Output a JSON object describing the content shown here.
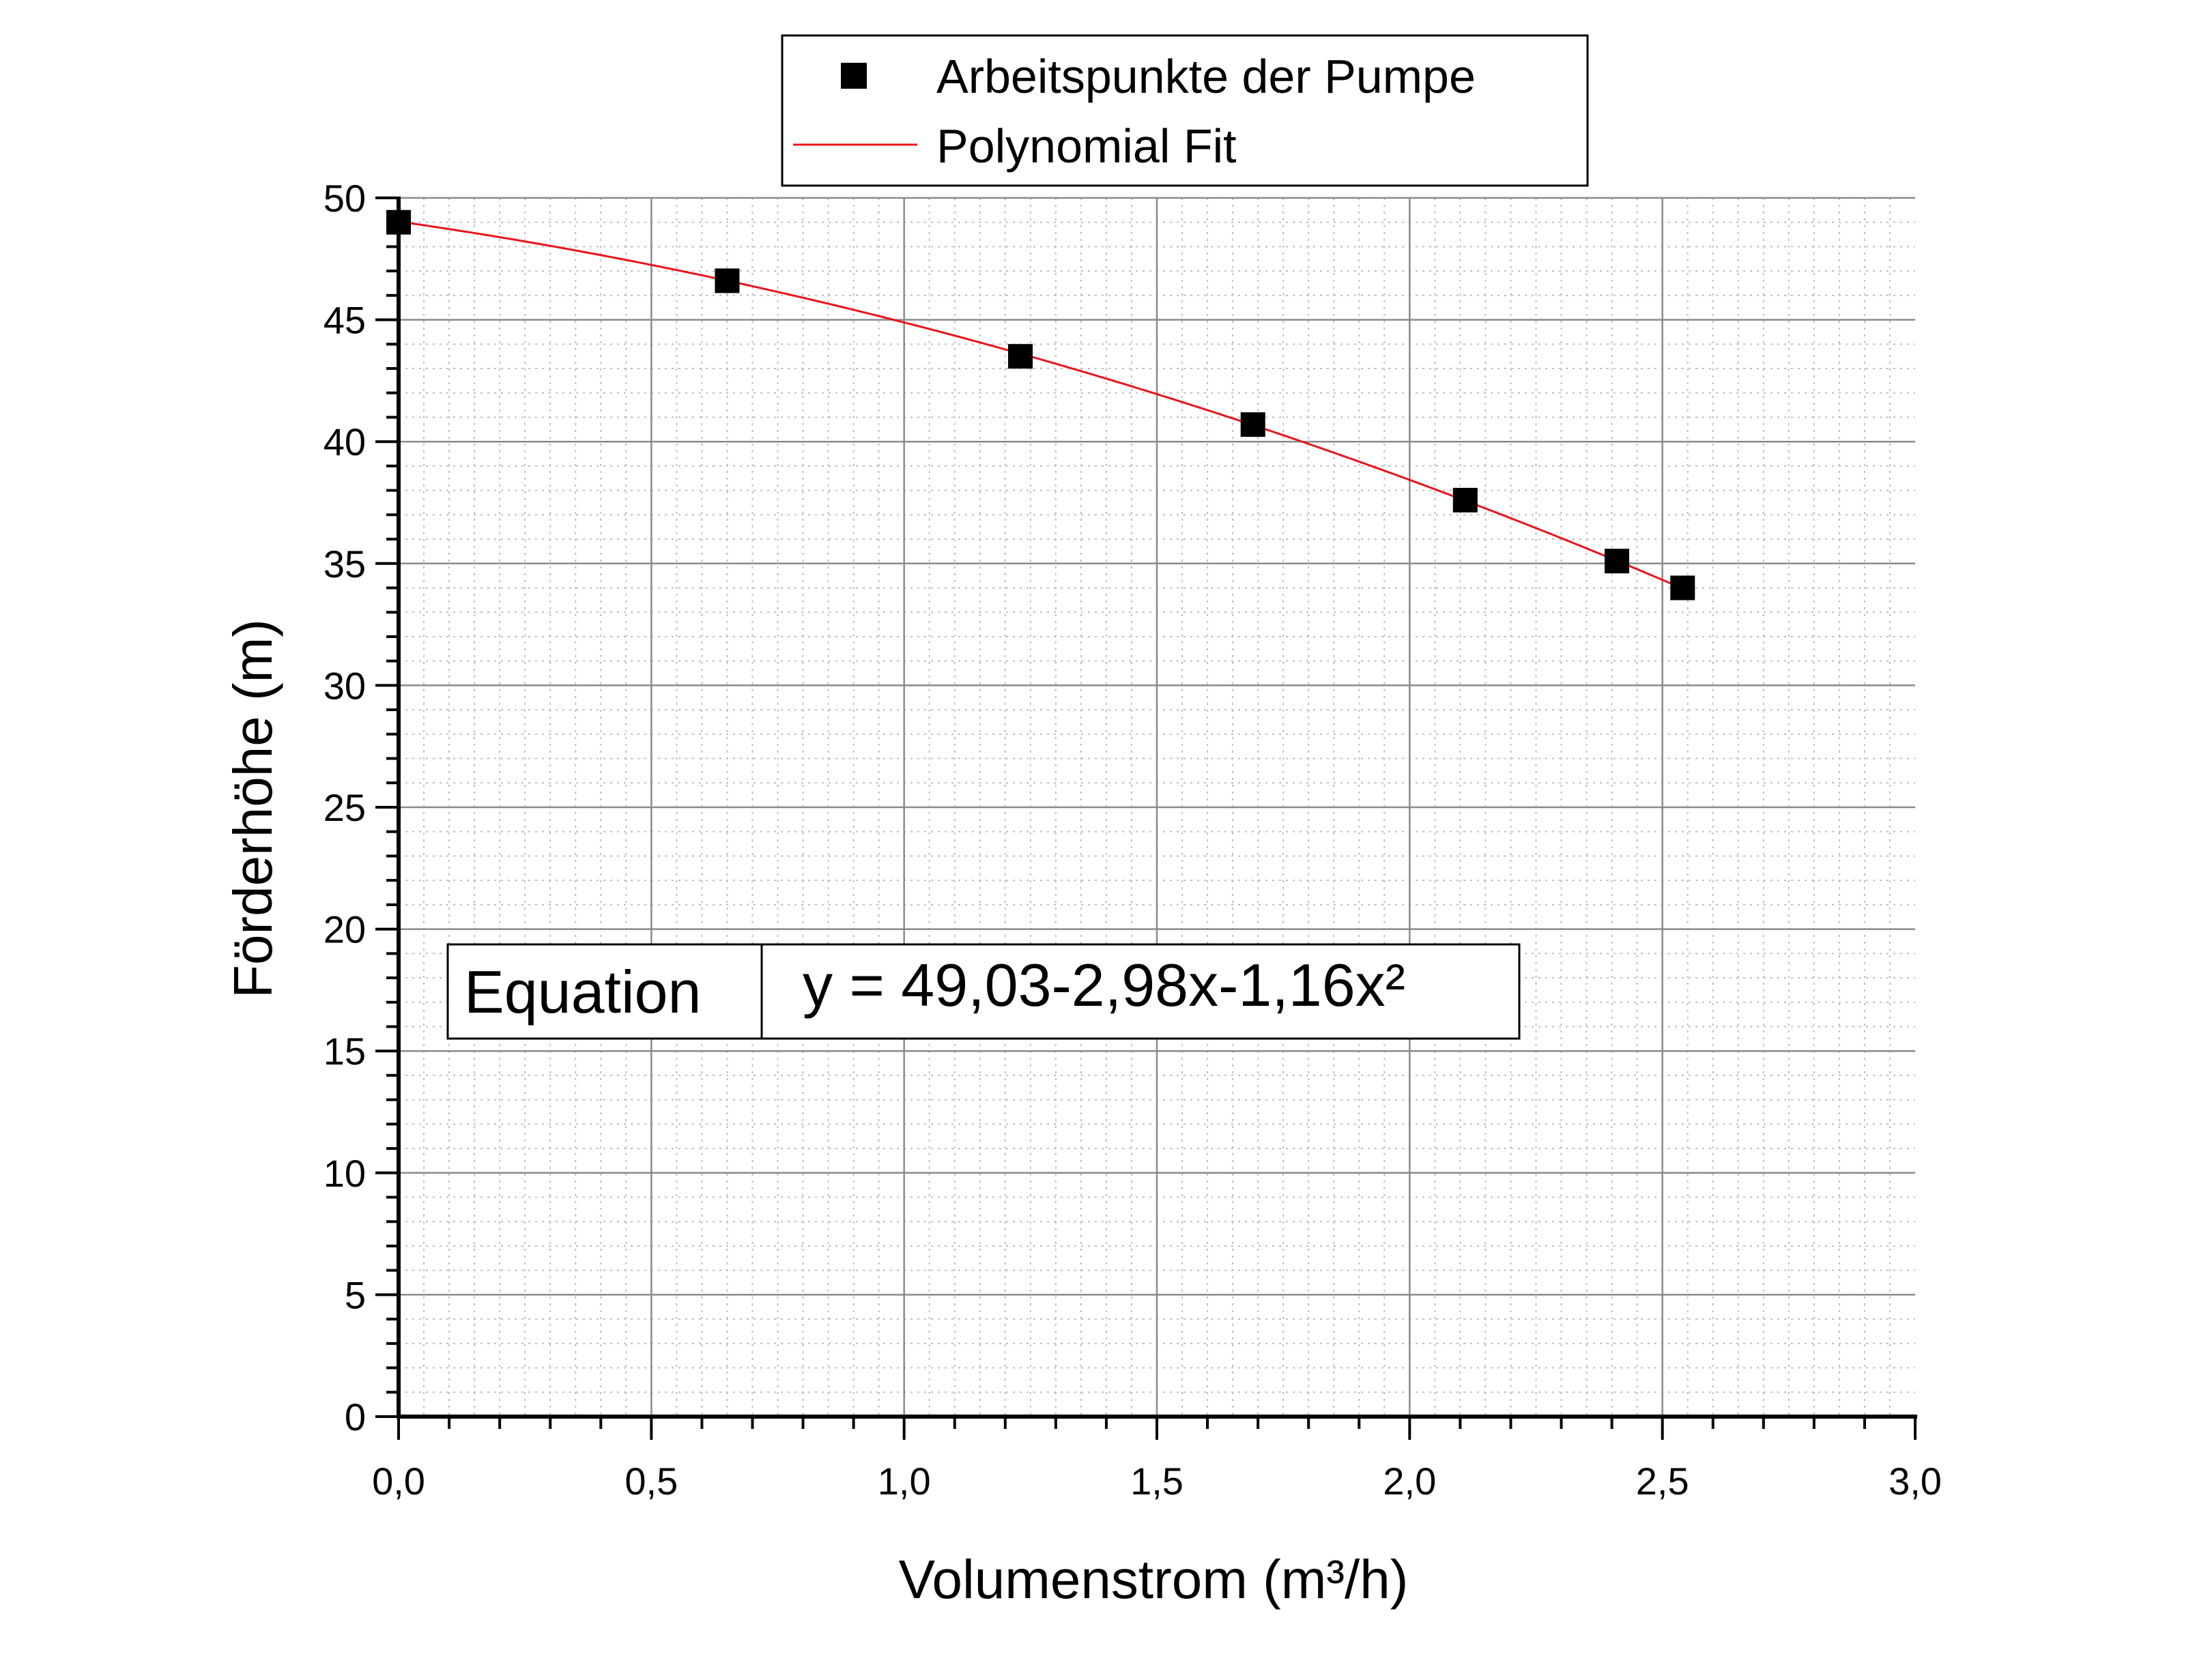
{
  "chart_data": {
    "type": "scatter",
    "xlabel": "Volumenstrom (m³/h)",
    "ylabel": "Förderhöhe (m)",
    "xlim": [
      0,
      3.0
    ],
    "ylim": [
      0,
      50
    ],
    "x_ticks": [
      "0,0",
      "0,5",
      "1,0",
      "1,5",
      "2,0",
      "2,5",
      "3,0"
    ],
    "y_ticks": [
      "0",
      "5",
      "10",
      "15",
      "20",
      "25",
      "30",
      "35",
      "40",
      "45",
      "50"
    ],
    "grid": true,
    "minor_grid": true,
    "legend_position": "top-center",
    "series": [
      {
        "name": "Arbeitspunkte der Pumpe",
        "kind": "scatter",
        "marker": "square",
        "color": "#000000",
        "points": [
          {
            "x": 0.0,
            "y": 49.0
          },
          {
            "x": 0.65,
            "y": 46.6
          },
          {
            "x": 1.23,
            "y": 43.5
          },
          {
            "x": 1.69,
            "y": 40.7
          },
          {
            "x": 2.11,
            "y": 37.6
          },
          {
            "x": 2.41,
            "y": 35.1
          },
          {
            "x": 2.54,
            "y": 34.0
          }
        ]
      },
      {
        "name": "Polynomial Fit",
        "kind": "line",
        "color": "#e8141c",
        "coefficients": [
          49.03,
          -2.98,
          -1.16
        ],
        "x_range": [
          0,
          2.54
        ]
      }
    ],
    "equation_box": {
      "label": "Equation",
      "value": "y = 49,03-2,98x-1,16x²"
    }
  }
}
